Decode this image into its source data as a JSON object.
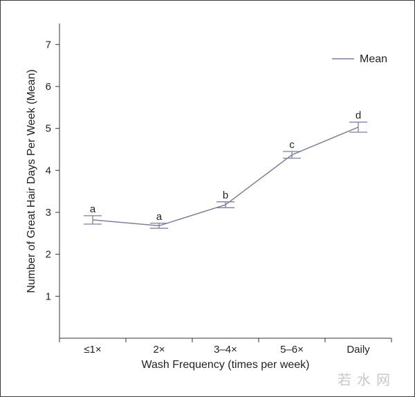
{
  "chart_data": {
    "type": "line",
    "title": "",
    "xlabel": "Wash Frequency (times per week)",
    "ylabel": "Number of Great Hair Days Per Week (Mean)",
    "categories": [
      "≤1×",
      "2×",
      "3–4×",
      "5–6×",
      "Daily"
    ],
    "ylim": [
      0,
      7.5
    ],
    "yticks": [
      1,
      2,
      3,
      4,
      5,
      6,
      7
    ],
    "series": [
      {
        "name": "Mean",
        "values": [
          2.82,
          2.68,
          3.18,
          4.37,
          5.03
        ],
        "error_low": [
          2.72,
          2.62,
          3.11,
          4.29,
          4.91
        ],
        "error_high": [
          2.92,
          2.74,
          3.25,
          4.45,
          5.15
        ],
        "significance": [
          "a",
          "a",
          "b",
          "c",
          "d"
        ]
      }
    ],
    "legend": {
      "position": "top-right",
      "entries": [
        "Mean"
      ]
    },
    "grid": false,
    "line_color": "#7c7f9a"
  },
  "watermark": "若水网"
}
